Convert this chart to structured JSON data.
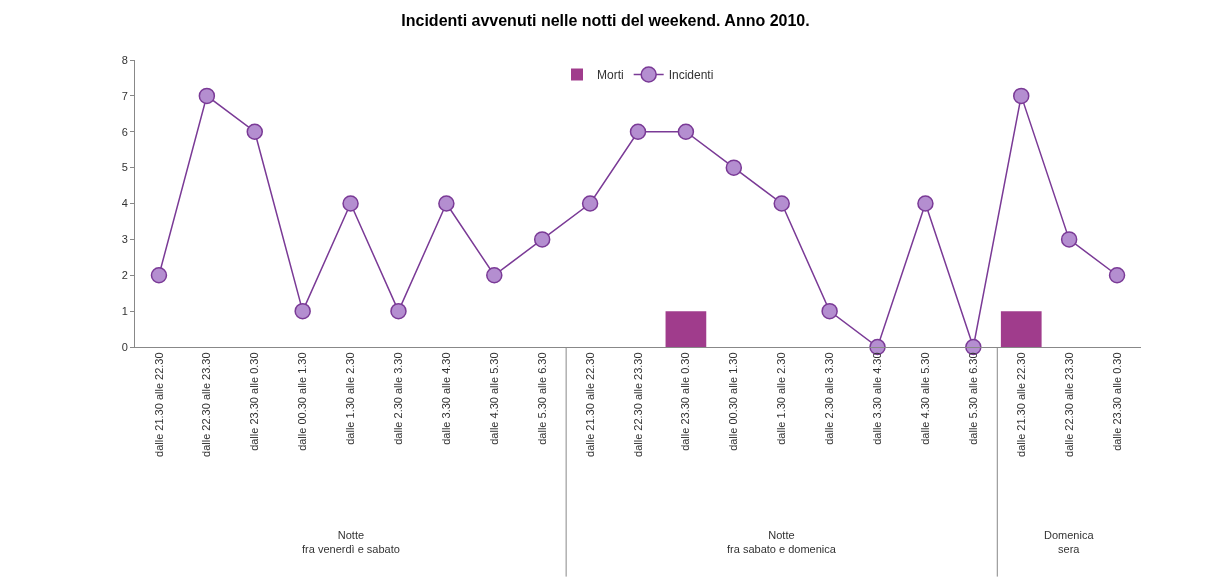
{
  "chart_data": {
    "type": "bar",
    "title": "Incidenti avvenuti nelle notti del weekend. Anno 2010.",
    "categories": [
      "dalle 21.30 alle 22.30",
      "dalle 22.30 alle 23.30",
      "dalle 23.30 alle 0.30",
      "dalle 00.30 alle 1.30",
      "dalle 1.30 alle 2.30",
      "dalle 2.30 alle 3.30",
      "dalle 3.30 alle 4.30",
      "dalle 4.30 alle 5.30",
      "dalle 5.30 alle 6.30",
      "dalle 21.30 alle 22.30",
      "dalle 22.30 alle 23.30",
      "dalle 23.30 alle 0.30",
      "dalle 00.30 alle 1.30",
      "dalle 1.30 alle 2.30",
      "dalle 2.30 alle 3.30",
      "dalle 3.30 alle 4.30",
      "dalle 4.30 alle 5.30",
      "dalle 5.30 alle 6.30",
      "dalle 21.30 alle 22.30",
      "dalle 22.30 alle 23.30",
      "dalle 23.30 alle 0.30"
    ],
    "series": [
      {
        "name": "Morti",
        "color": "#a03c8c",
        "values": [
          null,
          null,
          null,
          null,
          null,
          null,
          null,
          null,
          null,
          null,
          null,
          1,
          null,
          null,
          null,
          null,
          null,
          null,
          1,
          null,
          null
        ]
      },
      {
        "name": "Incidenti",
        "type": "line",
        "color": "#7a3a96",
        "values": [
          2,
          7,
          6,
          1,
          4,
          1,
          4,
          2,
          3,
          4,
          6,
          6,
          5,
          4,
          1,
          0,
          4,
          0,
          7,
          3,
          2
        ]
      }
    ],
    "marker": "circle",
    "ylim": [
      0,
      8
    ],
    "yticks": [
      0,
      1,
      2,
      3,
      4,
      5,
      6,
      7,
      8
    ],
    "grid": false,
    "legend": "top",
    "annotations": [
      "Notte\nfra venerdì e sabato",
      "Notte\nfra sabato e domenica",
      "Domenica\nsera"
    ]
  }
}
